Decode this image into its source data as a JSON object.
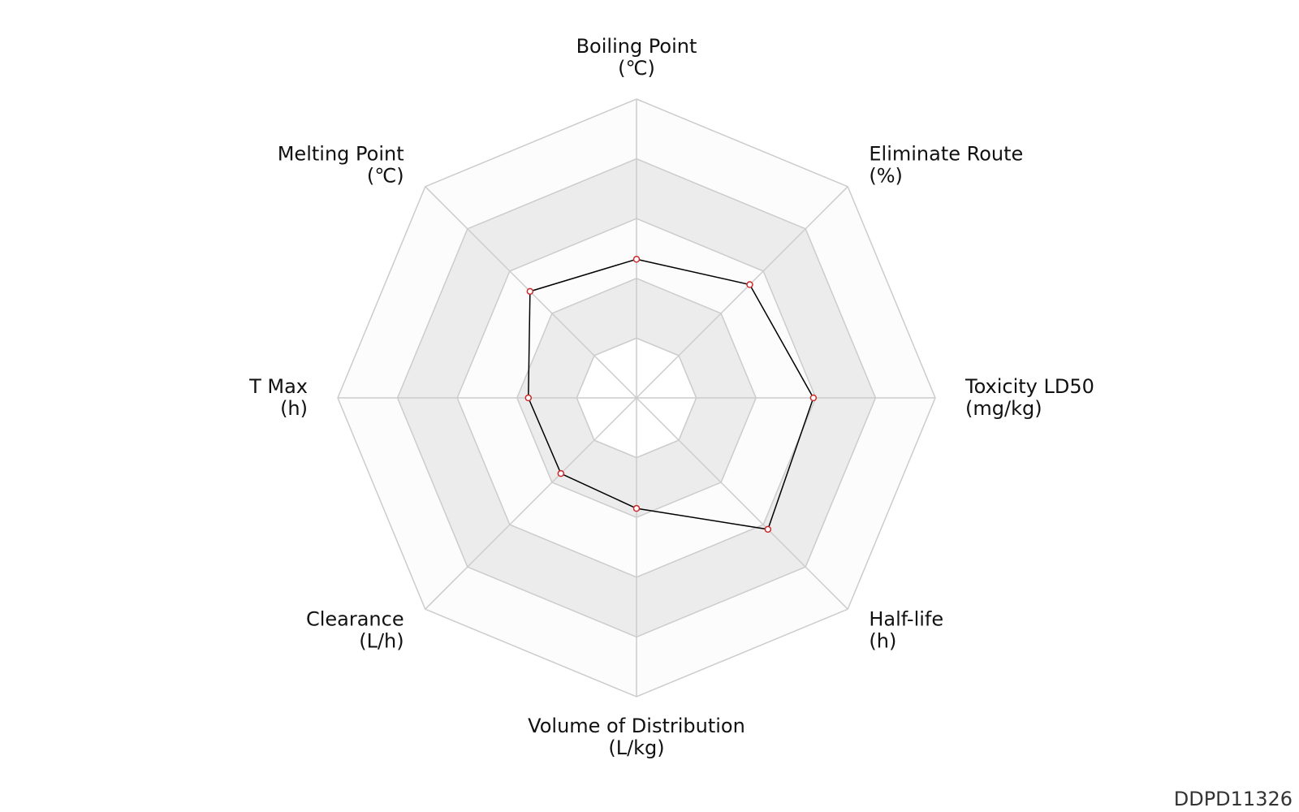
{
  "chart_data": {
    "type": "radar",
    "categories": [
      "Boiling Point",
      "Eliminate Route",
      "Toxicity LD50",
      "Half-life",
      "Volume of Distribution",
      "Clearance",
      "T Max",
      "Melting Point"
    ],
    "units": [
      "(℃)",
      "(%)",
      "(mg/kg)",
      "(h)",
      "(L/kg)",
      "(L/h)",
      "(h)",
      "(℃)"
    ],
    "values": [
      2.32,
      2.68,
      2.96,
      3.11,
      1.85,
      1.79,
      1.81,
      2.52
    ],
    "color": "#000000",
    "marker_color": "#cc2a2a",
    "rlim": [
      0,
      5
    ],
    "rticks": [
      1,
      2,
      3,
      4,
      5
    ],
    "band_colors": [
      "#ffffff",
      "#ececec"
    ],
    "grid": true,
    "watermark": "DDPD11326"
  }
}
